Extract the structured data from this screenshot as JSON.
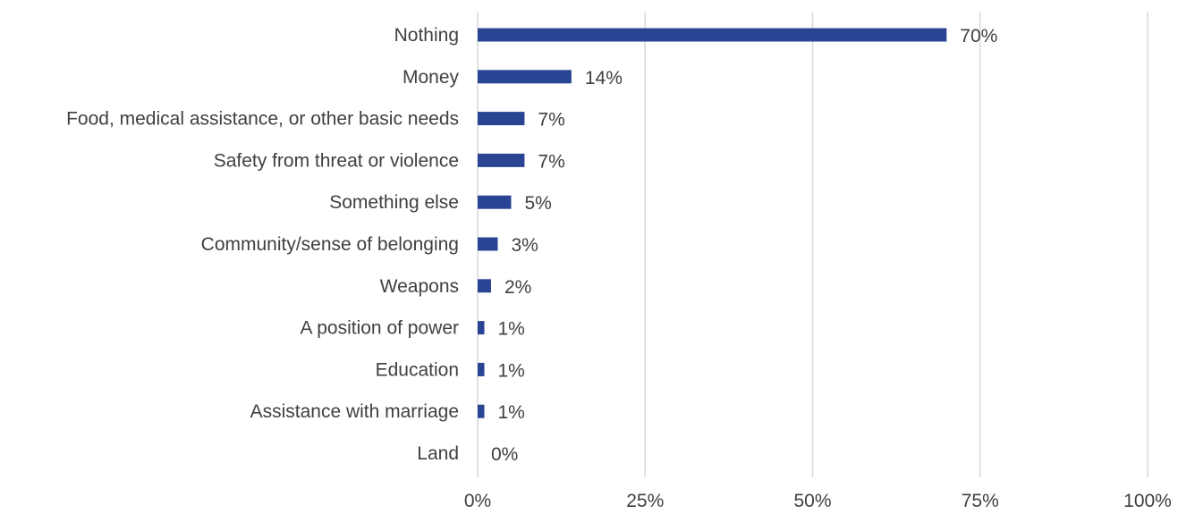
{
  "colors": {
    "bar": "#2a4494",
    "gridline": "#d9d9d9",
    "text": "#404040",
    "background": "#ffffff"
  },
  "chart_data": {
    "type": "bar",
    "orientation": "horizontal",
    "title": "",
    "xlabel": "",
    "ylabel": "",
    "categories": [
      "Nothing",
      "Money",
      "Food, medical assistance, or other basic needs",
      "Safety from threat or violence",
      "Something else",
      "Community/sense of belonging",
      "Weapons",
      "A position of power",
      "Education",
      "Assistance with marriage",
      "Land"
    ],
    "values": [
      70,
      14,
      7,
      7,
      5,
      3,
      2,
      1,
      1,
      1,
      0
    ],
    "data_labels": [
      "70%",
      "14%",
      "7%",
      "7%",
      "5%",
      "3%",
      "2%",
      "1%",
      "1%",
      "1%",
      "0%"
    ],
    "xlim": [
      0,
      100
    ],
    "xticks": [
      0,
      25,
      50,
      75,
      100
    ],
    "xtick_labels": [
      "0%",
      "25%",
      "50%",
      "75%",
      "100%"
    ],
    "grid": "vertical",
    "legend": "none"
  }
}
